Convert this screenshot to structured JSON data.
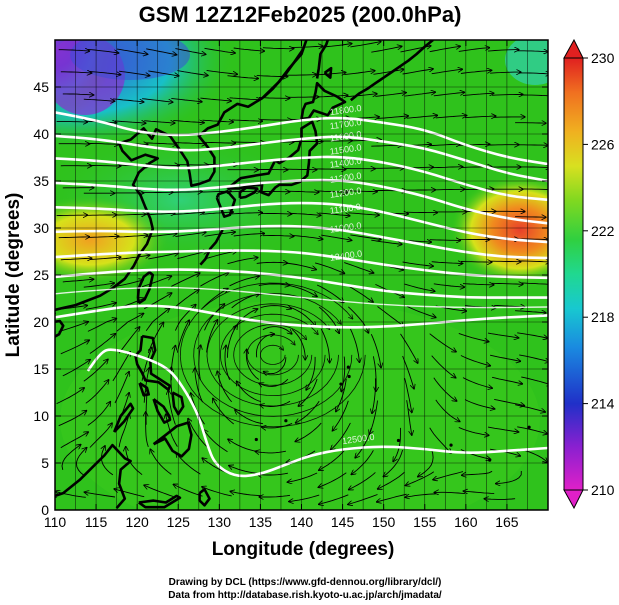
{
  "title": "GSM 12Z12Feb2025 (200.0hPa)",
  "xlabel": "Longitude (degrees)",
  "ylabel": "Latitude  (degrees)",
  "credit_drawing": "Drawing by DCL (https://www.gfd-dennou.org/library/dcl/)",
  "credit_data": "Data from http://database.rish.kyoto-u.ac.jp/arch/jmadata/",
  "colors": {
    "temp_base": "#2fc21c",
    "cold_blue": "#3a4fd6",
    "cold_purple": "#8a2fd0",
    "warm_orange": "#f08a1e",
    "warm_red": "#e8402a",
    "yellow": "#d6e21a",
    "contour": "#ffffff",
    "coast": "#000000",
    "streamline": "#000000"
  },
  "map": {
    "lon_range": [
      110,
      170
    ],
    "lat_range": [
      0,
      50
    ],
    "x_ticks": [
      "110",
      "115",
      "120",
      "125",
      "130",
      "135",
      "140",
      "145",
      "150",
      "155",
      "160",
      "165"
    ],
    "y_ticks": [
      "0",
      "5",
      "10",
      "15",
      "20",
      "25",
      "30",
      "35",
      "40",
      "45"
    ],
    "contour_labels": [
      {
        "text": "11800.0",
        "lon": 143.5,
        "lat": 42.0
      },
      {
        "text": "11700.0",
        "lon": 143.5,
        "lat": 40.5
      },
      {
        "text": "11600.0",
        "lon": 143.5,
        "lat": 39.2
      },
      {
        "text": "11500.0",
        "lon": 143.5,
        "lat": 37.8
      },
      {
        "text": "11400.0",
        "lon": 143.5,
        "lat": 36.4
      },
      {
        "text": "11300.0",
        "lon": 143.5,
        "lat": 34.8
      },
      {
        "text": "11200.0",
        "lon": 143.5,
        "lat": 33.2
      },
      {
        "text": "11100.0",
        "lon": 143.5,
        "lat": 31.5
      },
      {
        "text": "11000.0",
        "lon": 143.5,
        "lat": 29.5
      },
      {
        "text": "12400.0",
        "lon": 143.5,
        "lat": 26.5
      },
      {
        "text": "12500.0",
        "lon": 145.0,
        "lat": 7.0
      }
    ]
  },
  "colorbar": {
    "ticks": [
      "210",
      "214",
      "218",
      "222",
      "226",
      "230"
    ],
    "range": [
      210,
      230
    ]
  }
}
